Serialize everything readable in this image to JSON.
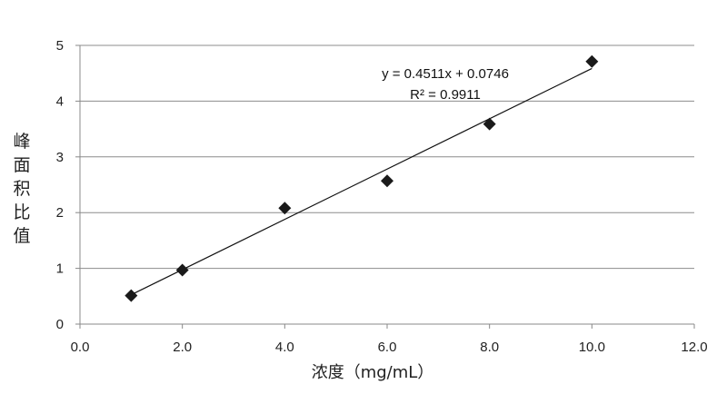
{
  "chart_data": {
    "type": "scatter",
    "title": "",
    "xlabel": "浓度（mg/mL）",
    "ylabel": "峰面积比值",
    "xlim": [
      0,
      12
    ],
    "ylim": [
      0,
      5
    ],
    "xticks": [
      "0.0",
      "2.0",
      "4.0",
      "6.0",
      "8.0",
      "10.0",
      "12.0"
    ],
    "yticks": [
      "0",
      "1",
      "2",
      "3",
      "4",
      "5"
    ],
    "grid": "horizontal",
    "marker": "diamond",
    "marker_color": "#1a1a1a",
    "series": [
      {
        "x": [
          1,
          2,
          4,
          6,
          8,
          10
        ],
        "y": [
          0.51,
          0.97,
          2.08,
          2.57,
          3.59,
          4.71
        ]
      }
    ],
    "trendline": {
      "slope": 0.4511,
      "intercept": 0.0746,
      "x_range": [
        1,
        10
      ]
    },
    "annotations": [
      "y = 0.4511x + 0.0746",
      "R² = 0.9911"
    ]
  }
}
